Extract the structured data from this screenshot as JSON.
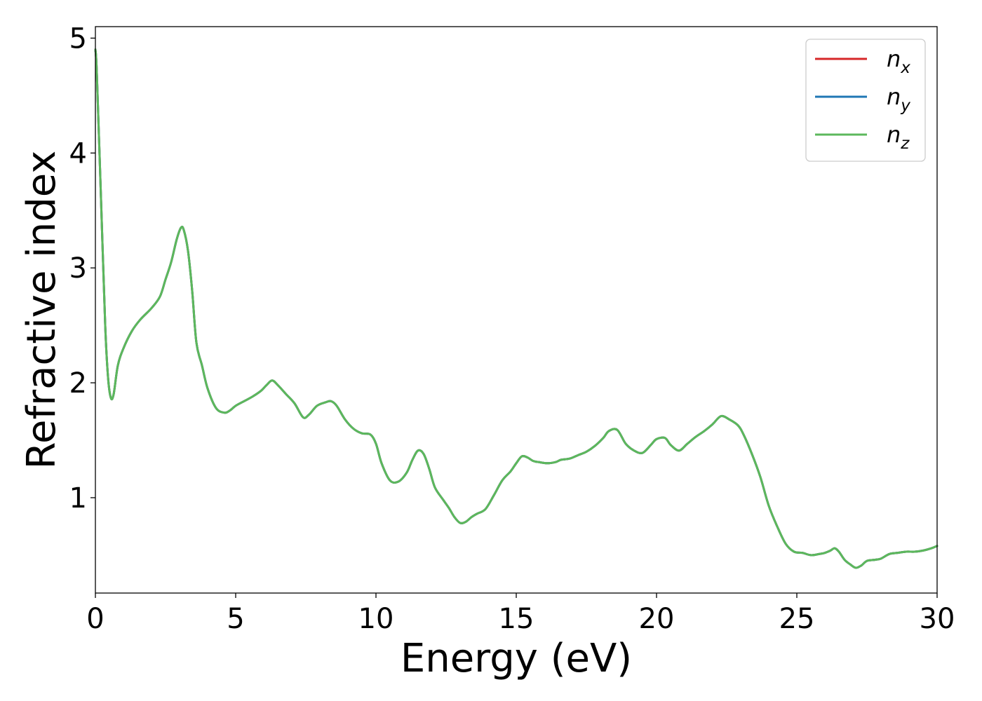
{
  "chart_data": {
    "type": "line",
    "title": "",
    "xlabel": "Energy (eV)",
    "ylabel": "Refractive index",
    "xlim": [
      0,
      30
    ],
    "ylim": [
      0.17,
      5.1
    ],
    "xticks": [
      0,
      5,
      10,
      15,
      20,
      25,
      30
    ],
    "xtick_labels": [
      "0",
      "5",
      "10",
      "15",
      "20",
      "25",
      "30"
    ],
    "yticks": [
      1,
      2,
      3,
      4,
      5
    ],
    "ytick_labels": [
      "1",
      "2",
      "3",
      "4",
      "5"
    ],
    "grid": false,
    "legend": {
      "placement": "top-right"
    },
    "series": [
      {
        "name": "n_x",
        "label_base": "n",
        "label_sub": "x",
        "color": "#d62728",
        "x": [
          0,
          0.05,
          0.2,
          0.35,
          0.45,
          0.55,
          0.65,
          0.8,
          1.0,
          1.3,
          1.6,
          2.0,
          2.3,
          2.5,
          2.7,
          2.9,
          3.05,
          3.15,
          3.3,
          3.45,
          3.6,
          3.8,
          4.0,
          4.3,
          4.6,
          4.8,
          5.0,
          5.3,
          5.6,
          5.9,
          6.1,
          6.3,
          6.5,
          6.8,
          7.1,
          7.4,
          7.6,
          7.9,
          8.2,
          8.4,
          8.6,
          8.9,
          9.2,
          9.5,
          9.8,
          10.0,
          10.2,
          10.5,
          10.8,
          11.1,
          11.3,
          11.5,
          11.7,
          11.9,
          12.1,
          12.4,
          12.6,
          12.8,
          13.0,
          13.2,
          13.4,
          13.6,
          13.9,
          14.2,
          14.5,
          14.8,
          15.0,
          15.2,
          15.4,
          15.6,
          15.8,
          16.1,
          16.4,
          16.6,
          16.9,
          17.2,
          17.5,
          17.8,
          18.1,
          18.3,
          18.6,
          18.9,
          19.2,
          19.5,
          19.8,
          20.0,
          20.3,
          20.5,
          20.8,
          21.1,
          21.4,
          21.7,
          22.0,
          22.3,
          22.6,
          22.9,
          23.1,
          23.4,
          23.7,
          24.0,
          24.3,
          24.6,
          24.9,
          25.2,
          25.5,
          25.8,
          26.0,
          26.2,
          26.35,
          26.5,
          26.7,
          26.9,
          27.1,
          27.3,
          27.5,
          27.8,
          28.0,
          28.3,
          28.6,
          28.9,
          29.2,
          29.5,
          29.8,
          30.0
        ],
        "y": [
          4.9,
          4.7,
          3.6,
          2.5,
          2.05,
          1.87,
          1.9,
          2.15,
          2.3,
          2.45,
          2.55,
          2.65,
          2.75,
          2.9,
          3.05,
          3.25,
          3.35,
          3.33,
          3.15,
          2.8,
          2.35,
          2.15,
          1.95,
          1.78,
          1.74,
          1.76,
          1.8,
          1.84,
          1.88,
          1.93,
          1.98,
          2.02,
          1.98,
          1.9,
          1.82,
          1.7,
          1.72,
          1.8,
          1.83,
          1.84,
          1.8,
          1.68,
          1.6,
          1.56,
          1.55,
          1.47,
          1.3,
          1.15,
          1.14,
          1.22,
          1.33,
          1.41,
          1.38,
          1.25,
          1.09,
          0.98,
          0.91,
          0.83,
          0.78,
          0.79,
          0.83,
          0.86,
          0.9,
          1.02,
          1.15,
          1.23,
          1.3,
          1.36,
          1.35,
          1.32,
          1.31,
          1.3,
          1.31,
          1.33,
          1.34,
          1.37,
          1.4,
          1.45,
          1.52,
          1.58,
          1.59,
          1.47,
          1.41,
          1.39,
          1.46,
          1.51,
          1.52,
          1.46,
          1.41,
          1.47,
          1.53,
          1.58,
          1.64,
          1.71,
          1.68,
          1.63,
          1.55,
          1.38,
          1.18,
          0.93,
          0.75,
          0.6,
          0.53,
          0.52,
          0.5,
          0.51,
          0.52,
          0.54,
          0.56,
          0.53,
          0.46,
          0.42,
          0.39,
          0.41,
          0.45,
          0.46,
          0.47,
          0.51,
          0.52,
          0.53,
          0.53,
          0.54,
          0.56,
          0.58
        ]
      },
      {
        "name": "n_y",
        "label_base": "n",
        "label_sub": "y",
        "color": "#1f77b4",
        "same_as": "n_x"
      },
      {
        "name": "n_z",
        "label_base": "n",
        "label_sub": "z",
        "color": "#5cb85c",
        "same_as": "n_x"
      }
    ]
  }
}
